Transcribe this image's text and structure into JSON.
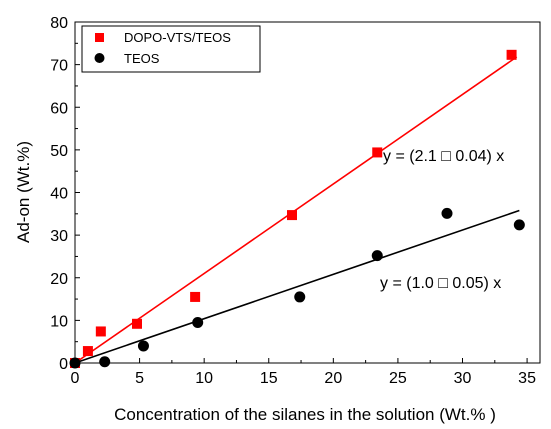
{
  "chart_data": {
    "type": "scatter",
    "xlabel": "Concentration of the silanes in the solution (Wt.% )",
    "ylabel": "Ad-on (Wt.%)",
    "xlim": [
      0,
      36
    ],
    "ylim": [
      0,
      80
    ],
    "xticks": [
      "0",
      "5",
      "10",
      "15",
      "20",
      "25",
      "30",
      "35"
    ],
    "yticks": [
      "0",
      "10",
      "20",
      "30",
      "40",
      "50",
      "60",
      "70",
      "80"
    ],
    "legend_position": "top-left",
    "series": [
      {
        "name": "DOPO-VTS/TEOS",
        "marker": "square",
        "color": "#ff0000",
        "points": [
          [
            0,
            0
          ],
          [
            1.0,
            2.8
          ],
          [
            2.0,
            7.4
          ],
          [
            4.8,
            9.2
          ],
          [
            9.3,
            15.5
          ],
          [
            16.8,
            34.7
          ],
          [
            23.4,
            49.4
          ],
          [
            33.8,
            72.3
          ]
        ],
        "fit": {
          "slope": 2.1,
          "x_range": [
            0,
            34.2
          ],
          "label": "y = (2.1 □ 0.04) x"
        }
      },
      {
        "name": "TEOS",
        "marker": "circle",
        "color": "#000000",
        "points": [
          [
            0,
            0
          ],
          [
            2.3,
            0.3
          ],
          [
            5.3,
            4.0
          ],
          [
            9.5,
            9.5
          ],
          [
            17.4,
            15.5
          ],
          [
            23.4,
            25.2
          ],
          [
            28.8,
            35.1
          ],
          [
            34.4,
            32.4
          ]
        ],
        "fit": {
          "slope": 1.04,
          "x_range": [
            0,
            34.4
          ],
          "label": "y = (1.0 □ 0.05) x"
        }
      }
    ]
  }
}
